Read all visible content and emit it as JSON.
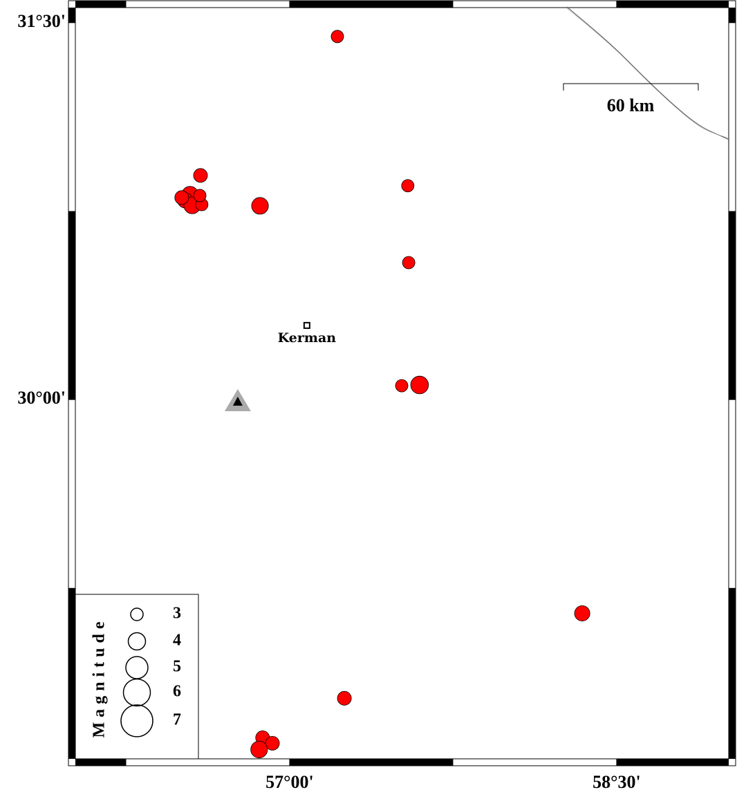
{
  "chart_data": {
    "type": "scatter",
    "xlim": [
      56.017,
      59.014
    ],
    "ylim": [
      28.57,
      31.56
    ],
    "xticks": [
      {
        "value": 57,
        "label": "57°00'"
      },
      {
        "value": 58.5,
        "label": "58°30'"
      }
    ],
    "yticks": [
      {
        "value": 30,
        "label": "30°00'"
      },
      {
        "value": 31.5,
        "label": "31°30'"
      }
    ],
    "events": {
      "color": "#ff0000",
      "lon": [
        57.219,
        56.591,
        57.542,
        56.864,
        56.543,
        56.521,
        56.553,
        56.597,
        56.588,
        56.505,
        57.546,
        57.514,
        57.596,
        58.342,
        57.251,
        56.876,
        56.921,
        56.86
      ],
      "lat": [
        31.445,
        30.892,
        30.851,
        30.771,
        30.815,
        30.793,
        30.773,
        30.776,
        30.812,
        30.804,
        30.545,
        30.055,
        30.058,
        29.149,
        28.811,
        28.654,
        28.632,
        28.607
      ],
      "magnitude": [
        3.0,
        3.3,
        3.0,
        3.9,
        3.9,
        3.6,
        3.9,
        3.0,
        3.0,
        3.3,
        3.0,
        3.0,
        4.1,
        3.6,
        3.3,
        3.3,
        3.3,
        3.9
      ]
    },
    "station": {
      "lon": 56.762,
      "lat": 29.992
    },
    "city": {
      "name": "Kerman",
      "lon": 57.079,
      "lat": 30.295
    },
    "scale_bar": "60 km",
    "legend": {
      "title": "Magnitude",
      "sizes": [
        3,
        4,
        5,
        6,
        7
      ]
    }
  }
}
